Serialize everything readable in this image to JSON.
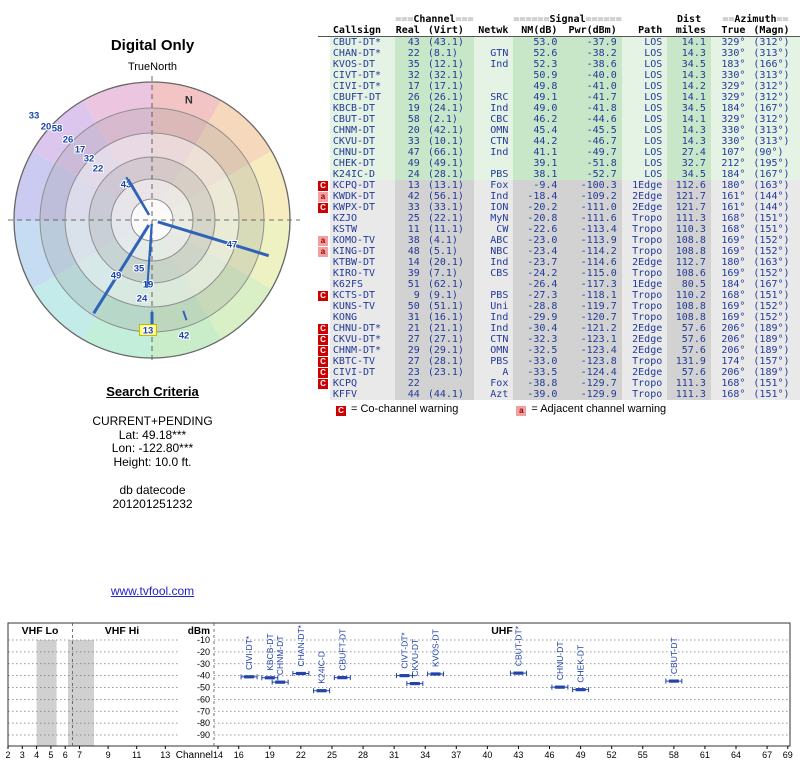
{
  "header": {
    "title": "Digital Only",
    "orientation": "TrueNorth",
    "north": "N"
  },
  "search": {
    "heading": "Search Criteria",
    "mode": "CURRENT+PENDING",
    "lat": "Lat: 49.18***",
    "lon": "Lon: -122.80***",
    "height": "Height: 10.0 ft.",
    "datecode_label": "db datecode",
    "datecode": "201201251232"
  },
  "link": {
    "text": "www.tvfool.com"
  },
  "legend": {
    "c_badge": "C",
    "c_text": "= Co-channel warning",
    "a_badge": "a",
    "a_text": "= Adjacent channel warning"
  },
  "colors": {
    "accent_blue": "#2244aa",
    "line_blue": "#2e63b8",
    "strong_bg": "#c8e6c8",
    "weak_bg": "#d2d2d2",
    "warn_red": "#cc0000",
    "warn_pink": "#f0a0a0",
    "az_red": "#cc2200",
    "az_green": "#007700",
    "az_purple": "#883399",
    "highlight_yellow": "#ffff66",
    "wheel": [
      "#f2c4c4",
      "#f6d8bc",
      "#f6ecc0",
      "#eef2c2",
      "#d9efc6",
      "#c8edc8",
      "#c2eeda",
      "#c2ebea",
      "#c6dcf2",
      "#cbcbf2",
      "#dcc6ee",
      "#ecc6e0"
    ]
  },
  "table": {
    "groups": {
      "channel_pre": "===",
      "channel": "Channel",
      "channel_post": "===",
      "signal_pre": "======",
      "signal": "Signal",
      "signal_post": "======",
      "dist": "Dist",
      "azimuth_pre": "==",
      "azimuth": "Azimuth",
      "azimuth_post": "=="
    },
    "columns": [
      "Callsign",
      "Real",
      "(Virt)",
      "Netwk",
      "NM(dB)",
      "Pwr(dBm)",
      "Path",
      "miles",
      "True",
      "(Magn)"
    ],
    "rows": [
      {
        "cs": "CBUT-DT*",
        "real": "43",
        "virt": "(43.1)",
        "nw": "",
        "nm": "53.0",
        "pwr": "-37.9",
        "path": "LOS",
        "mi": "14.1",
        "azt": "329°",
        "azm": "(312°)",
        "warn": "",
        "azc": "red",
        "strong": true
      },
      {
        "cs": "CHAN-DT*",
        "real": "22",
        "virt": "(8.1)",
        "nw": "GTN",
        "nm": "52.6",
        "pwr": "-38.2",
        "path": "LOS",
        "mi": "14.3",
        "azt": "330°",
        "azm": "(313°)",
        "warn": "",
        "azc": "red",
        "strong": true
      },
      {
        "cs": "KVOS-DT",
        "real": "35",
        "virt": "(12.1)",
        "nw": "Ind",
        "nm": "52.3",
        "pwr": "-38.6",
        "path": "LOS",
        "mi": "34.5",
        "azt": "183°",
        "azm": "(166°)",
        "warn": "",
        "azc": "green",
        "strong": true
      },
      {
        "cs": "CIVT-DT*",
        "real": "32",
        "virt": "(32.1)",
        "nw": "",
        "nm": "50.9",
        "pwr": "-40.0",
        "path": "LOS",
        "mi": "14.3",
        "azt": "330°",
        "azm": "(313°)",
        "warn": "",
        "azc": "red",
        "strong": true
      },
      {
        "cs": "CIVI-DT*",
        "real": "17",
        "virt": "(17.1)",
        "nw": "",
        "nm": "49.8",
        "pwr": "-41.0",
        "path": "LOS",
        "mi": "14.2",
        "azt": "329°",
        "azm": "(312°)",
        "warn": "",
        "azc": "red",
        "strong": true
      },
      {
        "cs": "CBUFT-DT",
        "real": "26",
        "virt": "(26.1)",
        "nw": "SRC",
        "nm": "49.1",
        "pwr": "-41.7",
        "path": "LOS",
        "mi": "14.1",
        "azt": "329°",
        "azm": "(312°)",
        "warn": "",
        "azc": "red",
        "strong": true
      },
      {
        "cs": "KBCB-DT",
        "real": "19",
        "virt": "(24.1)",
        "nw": "Ind",
        "nm": "49.0",
        "pwr": "-41.8",
        "path": "LOS",
        "mi": "34.5",
        "azt": "184°",
        "azm": "(167°)",
        "warn": "",
        "azc": "green",
        "strong": true
      },
      {
        "cs": "CBUT-DT",
        "real": "58",
        "virt": "(2.1)",
        "nw": "CBC",
        "nm": "46.2",
        "pwr": "-44.6",
        "path": "LOS",
        "mi": "14.1",
        "azt": "329°",
        "azm": "(312°)",
        "warn": "",
        "azc": "red",
        "strong": true
      },
      {
        "cs": "CHNM-DT",
        "real": "20",
        "virt": "(42.1)",
        "nw": "OMN",
        "nm": "45.4",
        "pwr": "-45.5",
        "path": "LOS",
        "mi": "14.3",
        "azt": "330°",
        "azm": "(313°)",
        "warn": "",
        "azc": "red",
        "strong": true
      },
      {
        "cs": "CKVU-DT",
        "real": "33",
        "virt": "(10.1)",
        "nw": "CTN",
        "nm": "44.2",
        "pwr": "-46.7",
        "path": "LOS",
        "mi": "14.3",
        "azt": "330°",
        "azm": "(313°)",
        "warn": "",
        "azc": "red",
        "strong": true
      },
      {
        "cs": "CHNU-DT",
        "real": "47",
        "virt": "(66.1)",
        "nw": "Ind",
        "nm": "41.1",
        "pwr": "-49.7",
        "path": "LOS",
        "mi": "27.4",
        "azt": "107°",
        "azm": "(90°)",
        "warn": "",
        "azc": "green",
        "strong": true
      },
      {
        "cs": "CHEK-DT",
        "real": "49",
        "virt": "(49.1)",
        "nw": "",
        "nm": "39.1",
        "pwr": "-51.8",
        "path": "LOS",
        "mi": "32.7",
        "azt": "212°",
        "azm": "(195°)",
        "warn": "",
        "azc": "purple",
        "strong": true
      },
      {
        "cs": "K24IC-D",
        "real": "24",
        "virt": "(28.1)",
        "nw": "PBS",
        "nm": "38.1",
        "pwr": "-52.7",
        "path": "LOS",
        "mi": "34.5",
        "azt": "184°",
        "azm": "(167°)",
        "warn": "",
        "azc": "green",
        "strong": true
      },
      {
        "cs": "KCPQ-DT",
        "real": "13",
        "virt": "(13.1)",
        "nw": "Fox",
        "nm": "-9.4",
        "pwr": "-100.3",
        "path": "1Edge",
        "mi": "112.6",
        "azt": "180°",
        "azm": "(163°)",
        "warn": "C",
        "azc": "green",
        "strong": false
      },
      {
        "cs": "KWDK-DT",
        "real": "42",
        "virt": "(56.1)",
        "nw": "Ind",
        "nm": "-18.4",
        "pwr": "-109.2",
        "path": "2Edge",
        "mi": "121.7",
        "azt": "161°",
        "azm": "(144°)",
        "warn": "a",
        "azc": "green",
        "strong": false
      },
      {
        "cs": "KWPX-DT",
        "real": "33",
        "virt": "(33.1)",
        "nw": "ION",
        "nm": "-20.2",
        "pwr": "-111.0",
        "path": "2Edge",
        "mi": "121.7",
        "azt": "161°",
        "azm": "(144°)",
        "warn": "C",
        "azc": "green",
        "strong": false
      },
      {
        "cs": "KZJO",
        "real": "25",
        "virt": "(22.1)",
        "nw": "MyN",
        "nm": "-20.8",
        "pwr": "-111.6",
        "path": "Tropo",
        "mi": "111.3",
        "azt": "168°",
        "azm": "(151°)",
        "warn": "",
        "azc": "green",
        "strong": false
      },
      {
        "cs": "KSTW",
        "real": "11",
        "virt": "(11.1)",
        "nw": "CW",
        "nm": "-22.6",
        "pwr": "-113.4",
        "path": "Tropo",
        "mi": "110.3",
        "azt": "168°",
        "azm": "(151°)",
        "warn": "",
        "azc": "green",
        "strong": false
      },
      {
        "cs": "KOMO-TV",
        "real": "38",
        "virt": "(4.1)",
        "nw": "ABC",
        "nm": "-23.0",
        "pwr": "-113.9",
        "path": "Tropo",
        "mi": "108.8",
        "azt": "169°",
        "azm": "(152°)",
        "warn": "a",
        "azc": "green",
        "strong": false
      },
      {
        "cs": "KING-DT",
        "real": "48",
        "virt": "(5.1)",
        "nw": "NBC",
        "nm": "-23.4",
        "pwr": "-114.2",
        "path": "Tropo",
        "mi": "108.8",
        "azt": "169°",
        "azm": "(152°)",
        "warn": "a",
        "azc": "green",
        "strong": false
      },
      {
        "cs": "KTBW-DT",
        "real": "14",
        "virt": "(20.1)",
        "nw": "Ind",
        "nm": "-23.7",
        "pwr": "-114.6",
        "path": "2Edge",
        "mi": "112.7",
        "azt": "180°",
        "azm": "(163°)",
        "warn": "",
        "azc": "green",
        "strong": false
      },
      {
        "cs": "KIRO-TV",
        "real": "39",
        "virt": "(7.1)",
        "nw": "CBS",
        "nm": "-24.2",
        "pwr": "-115.0",
        "path": "Tropo",
        "mi": "108.6",
        "azt": "169°",
        "azm": "(152°)",
        "warn": "",
        "azc": "green",
        "strong": false
      },
      {
        "cs": "K62FS",
        "real": "51",
        "virt": "(62.1)",
        "nw": "",
        "nm": "-26.4",
        "pwr": "-117.3",
        "path": "1Edge",
        "mi": "80.5",
        "azt": "184°",
        "azm": "(167°)",
        "warn": "",
        "azc": "green",
        "strong": false
      },
      {
        "cs": "KCTS-DT",
        "real": "9",
        "virt": "(9.1)",
        "nw": "PBS",
        "nm": "-27.3",
        "pwr": "-118.1",
        "path": "Tropo",
        "mi": "110.2",
        "azt": "168°",
        "azm": "(151°)",
        "warn": "C",
        "azc": "green",
        "strong": false
      },
      {
        "cs": "KUNS-TV",
        "real": "50",
        "virt": "(51.1)",
        "nw": "Uni",
        "nm": "-28.8",
        "pwr": "-119.7",
        "path": "Tropo",
        "mi": "108.8",
        "azt": "169°",
        "azm": "(152°)",
        "warn": "",
        "azc": "green",
        "strong": false
      },
      {
        "cs": "KONG",
        "real": "31",
        "virt": "(16.1)",
        "nw": "Ind",
        "nm": "-29.9",
        "pwr": "-120.7",
        "path": "Tropo",
        "mi": "108.8",
        "azt": "169°",
        "azm": "(152°)",
        "warn": "",
        "azc": "green",
        "strong": false
      },
      {
        "cs": "CHNU-DT*",
        "real": "21",
        "virt": "(21.1)",
        "nw": "Ind",
        "nm": "-30.4",
        "pwr": "-121.2",
        "path": "2Edge",
        "mi": "57.6",
        "azt": "206°",
        "azm": "(189°)",
        "warn": "C",
        "azc": "green",
        "strong": false
      },
      {
        "cs": "CKVU-DT*",
        "real": "27",
        "virt": "(27.1)",
        "nw": "CTN",
        "nm": "-32.3",
        "pwr": "-123.1",
        "path": "2Edge",
        "mi": "57.6",
        "azt": "206°",
        "azm": "(189°)",
        "warn": "C",
        "azc": "green",
        "strong": false
      },
      {
        "cs": "CHNM-DT*",
        "real": "29",
        "virt": "(29.1)",
        "nw": "OMN",
        "nm": "-32.5",
        "pwr": "-123.4",
        "path": "2Edge",
        "mi": "57.6",
        "azt": "206°",
        "azm": "(189°)",
        "warn": "C",
        "azc": "green",
        "strong": false
      },
      {
        "cs": "KBTC-TV",
        "real": "27",
        "virt": "(28.1)",
        "nw": "PBS",
        "nm": "-33.0",
        "pwr": "-123.8",
        "path": "Tropo",
        "mi": "131.9",
        "azt": "174°",
        "azm": "(157°)",
        "warn": "C",
        "azc": "green",
        "strong": false
      },
      {
        "cs": "CIVI-DT",
        "real": "23",
        "virt": "(23.1)",
        "nw": "A",
        "nm": "-33.5",
        "pwr": "-124.4",
        "path": "2Edge",
        "mi": "57.6",
        "azt": "206°",
        "azm": "(189°)",
        "warn": "C",
        "azc": "green",
        "strong": false
      },
      {
        "cs": "KCPQ",
        "real": "22",
        "virt": "",
        "nw": "Fox",
        "nm": "-38.8",
        "pwr": "-129.7",
        "path": "Tropo",
        "mi": "111.3",
        "azt": "168°",
        "azm": "(151°)",
        "warn": "C",
        "azc": "green",
        "strong": false
      },
      {
        "cs": "KFFV",
        "real": "44",
        "virt": "(44.1)",
        "nw": "Azt",
        "nm": "-39.0",
        "pwr": "-129.9",
        "path": "Tropo",
        "mi": "111.3",
        "azt": "168°",
        "azm": "(151°)",
        "warn": "",
        "azc": "green",
        "strong": false
      }
    ]
  },
  "chart_data": [
    {
      "type": "radar",
      "title": "Digital Only",
      "orientation": "TrueNorth",
      "value_note": "azimuth in degrees true; channel numbers plotted, distance from center grows as signal weakens",
      "stations": [
        {
          "ch": 43,
          "az": 329,
          "nm": 53.0
        },
        {
          "ch": 22,
          "az": 330,
          "nm": 52.6
        },
        {
          "ch": 32,
          "az": 330,
          "nm": 50.9
        },
        {
          "ch": 17,
          "az": 329,
          "nm": 49.8
        },
        {
          "ch": 26,
          "az": 329,
          "nm": 49.1
        },
        {
          "ch": 58,
          "az": 329,
          "nm": 46.2
        },
        {
          "ch": 20,
          "az": 330,
          "nm": 45.4
        },
        {
          "ch": 33,
          "az": 330,
          "nm": 44.2
        },
        {
          "ch": 35,
          "az": 183,
          "nm": 52.3
        },
        {
          "ch": 19,
          "az": 184,
          "nm": 49.0
        },
        {
          "ch": 24,
          "az": 184,
          "nm": 38.1
        },
        {
          "ch": 49,
          "az": 212,
          "nm": 39.1
        },
        {
          "ch": 47,
          "az": 107,
          "nm": 41.1
        },
        {
          "ch": 13,
          "az": 180,
          "nm": -9.4,
          "highlight": true
        },
        {
          "ch": 42,
          "az": 161,
          "nm": -18.4
        }
      ]
    },
    {
      "type": "scatter",
      "title": "",
      "xlabel": "Channel",
      "ylabel": "dBm",
      "ylim": [
        -90,
        -10
      ],
      "y_ticks": [
        -10,
        -20,
        -30,
        -40,
        -50,
        -60,
        -70,
        -80,
        -90
      ],
      "x_ticks": [
        2,
        3,
        4,
        5,
        6,
        7,
        9,
        11,
        13,
        14,
        16,
        19,
        22,
        25,
        28,
        31,
        34,
        37,
        40,
        43,
        46,
        49,
        52,
        55,
        58,
        61,
        64,
        67,
        69
      ],
      "bands": [
        {
          "label": "VHF Lo",
          "channels": [
            2,
            6
          ]
        },
        {
          "label": "VHF Hi",
          "channels": [
            7,
            13
          ]
        },
        {
          "label": "UHF",
          "channels": [
            14,
            69
          ]
        }
      ],
      "points": [
        {
          "label": "CIVI-DT*",
          "channel": 17,
          "dbm": -41.0
        },
        {
          "label": "KBCB-DT",
          "channel": 19,
          "dbm": -41.8
        },
        {
          "label": "CHNM-DT",
          "channel": 20,
          "dbm": -45.5
        },
        {
          "label": "CHAN-DT*",
          "channel": 22,
          "dbm": -38.2
        },
        {
          "label": "K24IC-D",
          "channel": 24,
          "dbm": -52.7
        },
        {
          "label": "CBUFT-DT",
          "channel": 26,
          "dbm": -41.7
        },
        {
          "label": "CIVT-DT*",
          "channel": 32,
          "dbm": -40.0
        },
        {
          "label": "CKVU-DT",
          "channel": 33,
          "dbm": -46.7
        },
        {
          "label": "KVOS-DT",
          "channel": 35,
          "dbm": -38.6
        },
        {
          "label": "CBUT-DT*",
          "channel": 43,
          "dbm": -37.9
        },
        {
          "label": "CHNU-DT",
          "channel": 47,
          "dbm": -49.7
        },
        {
          "label": "CHEK-DT",
          "channel": 49,
          "dbm": -51.8
        },
        {
          "label": "CBUT-DT",
          "channel": 58,
          "dbm": -44.6
        }
      ]
    }
  ]
}
